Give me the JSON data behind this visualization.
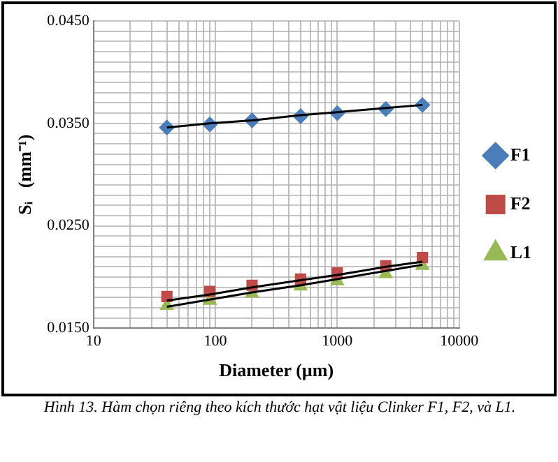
{
  "chart_data": {
    "type": "scatter",
    "xlabel": "Diameter (µm)",
    "ylabel": "Sᵢ   (mm⁻¹)",
    "x": [
      40,
      90,
      200,
      500,
      1000,
      2500,
      5000
    ],
    "series": [
      {
        "name": "F1",
        "color": "#4a7ebb",
        "marker": "diamond",
        "values": [
          0.0346,
          0.0349,
          0.0353,
          0.0357,
          0.036,
          0.0364,
          0.0368
        ]
      },
      {
        "name": "F2",
        "color": "#be4b48",
        "marker": "square",
        "values": [
          0.0181,
          0.0186,
          0.0192,
          0.0198,
          0.0204,
          0.0211,
          0.0219
        ]
      },
      {
        "name": "L1",
        "color": "#98b954",
        "marker": "triangle",
        "values": [
          0.0172,
          0.0177,
          0.0184,
          0.0191,
          0.0196,
          0.0203,
          0.0211
        ]
      },
      {
        "type": "line",
        "color": "#000000",
        "values": [
          0.0346,
          0.035,
          0.0353,
          0.0358,
          0.0361,
          0.0365,
          0.0368
        ]
      },
      {
        "type": "line",
        "color": "#000000",
        "values": [
          0.0177,
          0.0183,
          0.019,
          0.0197,
          0.0202,
          0.021,
          0.0215
        ]
      },
      {
        "type": "line",
        "color": "#000000",
        "values": [
          0.0171,
          0.0178,
          0.0185,
          0.0192,
          0.0198,
          0.0206,
          0.0212
        ]
      }
    ],
    "log": "x",
    "xlim": [
      10,
      10000
    ],
    "xticks": [
      10,
      {
        "value": 20,
        "label": null
      },
      {
        "value": 30,
        "label": null
      },
      {
        "value": 40,
        "label": null
      },
      {
        "value": 50,
        "label": null
      },
      {
        "value": 60,
        "label": null
      },
      {
        "value": 70,
        "label": null
      },
      {
        "value": 80,
        "label": null
      },
      {
        "value": 90,
        "label": null
      },
      100,
      {
        "value": 200,
        "label": null
      },
      {
        "value": 300,
        "label": null
      },
      {
        "value": 400,
        "label": null
      },
      {
        "value": 500,
        "label": null
      },
      {
        "value": 600,
        "label": null
      },
      {
        "value": 700,
        "label": null
      },
      {
        "value": 800,
        "label": null
      },
      {
        "value": 900,
        "label": null
      },
      1000,
      {
        "value": 2000,
        "label": null
      },
      {
        "value": 3000,
        "label": null
      },
      {
        "value": 4000,
        "label": null
      },
      {
        "value": 5000,
        "label": null
      },
      {
        "value": 6000,
        "label": null
      },
      {
        "value": 7000,
        "label": null
      },
      {
        "value": 8000,
        "label": null
      },
      {
        "value": 9000,
        "label": null
      },
      10000
    ],
    "ylim": [
      0.015,
      0.045
    ],
    "yticks": [
      {
        "value": 0.015,
        "label": "0.0150"
      },
      {
        "value": 0.016,
        "label": null
      },
      {
        "value": 0.017,
        "label": null
      },
      {
        "value": 0.018,
        "label": null
      },
      {
        "value": 0.019,
        "label": null
      },
      {
        "value": 0.02,
        "label": null
      },
      {
        "value": 0.021,
        "label": null
      },
      {
        "value": 0.022,
        "label": null
      },
      {
        "value": 0.023,
        "label": null
      },
      {
        "value": 0.024,
        "label": null
      },
      {
        "value": 0.025,
        "label": "0.0250"
      },
      {
        "value": 0.026,
        "label": null
      },
      {
        "value": 0.027,
        "label": null
      },
      {
        "value": 0.028,
        "label": null
      },
      {
        "value": 0.029,
        "label": null
      },
      {
        "value": 0.03,
        "label": null
      },
      {
        "value": 0.031,
        "label": null
      },
      {
        "value": 0.032,
        "label": null
      },
      {
        "value": 0.033,
        "label": null
      },
      {
        "value": 0.034,
        "label": null
      },
      {
        "value": 0.035,
        "label": "0.0350"
      },
      {
        "value": 0.036,
        "label": null
      },
      {
        "value": 0.037,
        "label": null
      },
      {
        "value": 0.038,
        "label": null
      },
      {
        "value": 0.039,
        "label": null
      },
      {
        "value": 0.04,
        "label": null
      },
      {
        "value": 0.041,
        "label": null
      },
      {
        "value": 0.042,
        "label": null
      },
      {
        "value": 0.043,
        "label": null
      },
      {
        "value": 0.044,
        "label": null
      },
      {
        "value": 0.045,
        "label": "0.0450"
      }
    ],
    "grid": true,
    "legend": "right",
    "annotations": [
      "Hình 13. Hàm chọn riêng theo kích thước hạt vật liệu Clinker F1, F2, và L1."
    ]
  }
}
